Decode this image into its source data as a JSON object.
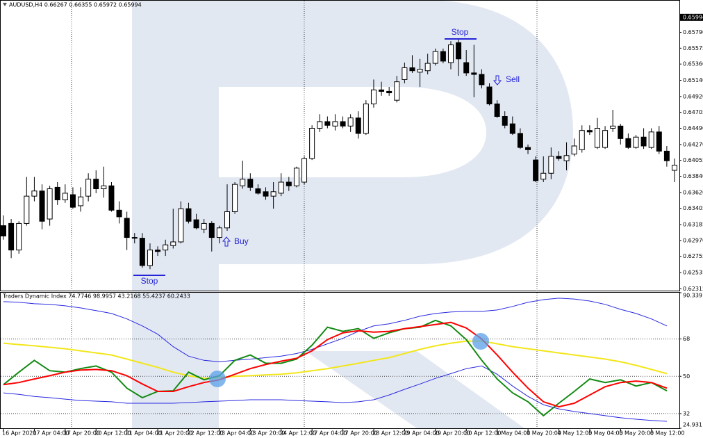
{
  "chart_data": [
    {
      "type": "candlestick",
      "title": "AUDUSD,H4  0.66267 0.66355 0.65972 0.65994",
      "open": [
        0.6317,
        0.632,
        0.6284,
        0.632,
        0.6357,
        0.6364,
        0.6326,
        0.6369,
        0.6352,
        0.6359,
        0.6344,
        0.6357,
        0.638,
        0.6367,
        0.6371,
        0.6338,
        0.6327,
        0.6301,
        0.63,
        0.6263,
        0.6284,
        0.6284,
        0.629,
        0.6295,
        0.634,
        0.6325,
        0.6312,
        0.632,
        0.6301,
        0.6314,
        0.6336,
        0.6371,
        0.638,
        0.6367,
        0.6363,
        0.6357,
        0.6361,
        0.6376,
        0.6371,
        0.6376,
        0.6408,
        0.6449,
        0.6458,
        0.6452,
        0.6458,
        0.6452,
        0.6463,
        0.6442,
        0.6482,
        0.6501,
        0.6499,
        0.6487,
        0.6515,
        0.6531,
        0.6525,
        0.6527,
        0.6537,
        0.6553,
        0.6538,
        0.6565,
        0.6538,
        0.6524,
        0.6522,
        0.6505,
        0.6482,
        0.6465,
        0.6455,
        0.6442,
        0.6423,
        0.6406,
        0.638,
        0.6388,
        0.6411,
        0.6405,
        0.6414,
        0.642,
        0.6446,
        0.6423,
        0.6423,
        0.6449,
        0.6452,
        0.6435,
        0.6423,
        0.6437,
        0.6423,
        0.6444,
        0.6418,
        0.6392
      ],
      "high": [
        0.6331,
        0.6326,
        0.6323,
        0.6383,
        0.6383,
        0.6373,
        0.6371,
        0.6376,
        0.6373,
        0.6369,
        0.6369,
        0.6388,
        0.6392,
        0.6397,
        0.6376,
        0.635,
        0.6336,
        0.6307,
        0.6307,
        0.6293,
        0.6289,
        0.6298,
        0.634,
        0.635,
        0.6348,
        0.6333,
        0.6326,
        0.6323,
        0.6317,
        0.6373,
        0.6376,
        0.6405,
        0.6388,
        0.6373,
        0.6369,
        0.6376,
        0.6388,
        0.6383,
        0.6397,
        0.6411,
        0.6453,
        0.6468,
        0.6465,
        0.6468,
        0.6465,
        0.6468,
        0.6472,
        0.6487,
        0.6515,
        0.6512,
        0.6505,
        0.652,
        0.6538,
        0.6548,
        0.6543,
        0.655,
        0.6557,
        0.6557,
        0.6567,
        0.6569,
        0.6555,
        0.6562,
        0.6529,
        0.651,
        0.6487,
        0.6472,
        0.6465,
        0.6449,
        0.6427,
        0.6411,
        0.6411,
        0.6423,
        0.6418,
        0.643,
        0.6435,
        0.6453,
        0.6453,
        0.6463,
        0.6452,
        0.6474,
        0.6455,
        0.6442,
        0.644,
        0.6449,
        0.6449,
        0.6452,
        0.6425,
        0.6408
      ],
      "low": [
        0.6298,
        0.6273,
        0.6279,
        0.6317,
        0.635,
        0.6312,
        0.6317,
        0.6345,
        0.6348,
        0.634,
        0.6336,
        0.635,
        0.6361,
        0.6355,
        0.6336,
        0.632,
        0.6284,
        0.6293,
        0.626,
        0.6258,
        0.6276,
        0.6276,
        0.6286,
        0.6293,
        0.632,
        0.6312,
        0.6307,
        0.6282,
        0.6293,
        0.631,
        0.6333,
        0.6367,
        0.6364,
        0.6359,
        0.6352,
        0.634,
        0.6357,
        0.6364,
        0.6369,
        0.6373,
        0.6406,
        0.6444,
        0.6449,
        0.6446,
        0.6449,
        0.6444,
        0.6435,
        0.644,
        0.6477,
        0.6493,
        0.6493,
        0.6484,
        0.651,
        0.6524,
        0.6505,
        0.6522,
        0.6534,
        0.6537,
        0.6529,
        0.652,
        0.652,
        0.6491,
        0.6503,
        0.648,
        0.6463,
        0.6449,
        0.644,
        0.6421,
        0.6414,
        0.6376,
        0.6376,
        0.638,
        0.6405,
        0.6392,
        0.6411,
        0.6416,
        0.644,
        0.6421,
        0.6421,
        0.6444,
        0.6427,
        0.6421,
        0.6421,
        0.6421,
        0.6421,
        0.6414,
        0.6397,
        0.6376
      ],
      "close": [
        0.6303,
        0.6284,
        0.632,
        0.6357,
        0.6364,
        0.6323,
        0.6367,
        0.6352,
        0.6361,
        0.6342,
        0.6356,
        0.638,
        0.6367,
        0.6371,
        0.6338,
        0.6329,
        0.6301,
        0.63,
        0.6263,
        0.6284,
        0.6282,
        0.6291,
        0.6295,
        0.634,
        0.6323,
        0.6314,
        0.632,
        0.6301,
        0.6314,
        0.6336,
        0.6373,
        0.638,
        0.6369,
        0.6361,
        0.6357,
        0.6363,
        0.6376,
        0.6371,
        0.6395,
        0.6408,
        0.6449,
        0.6458,
        0.6453,
        0.6458,
        0.6452,
        0.6463,
        0.6442,
        0.6482,
        0.6501,
        0.6499,
        0.6497,
        0.6512,
        0.6531,
        0.6527,
        0.6529,
        0.6537,
        0.6553,
        0.654,
        0.6562,
        0.6543,
        0.6524,
        0.6522,
        0.6508,
        0.6482,
        0.6465,
        0.6453,
        0.6442,
        0.6423,
        0.642,
        0.6378,
        0.6388,
        0.6411,
        0.6408,
        0.6412,
        0.6425,
        0.6446,
        0.6444,
        0.6449,
        0.6446,
        0.6452,
        0.6435,
        0.6423,
        0.6437,
        0.6425,
        0.6444,
        0.6418,
        0.6405,
        0.6399
      ],
      "ylim": [
        0.6229,
        0.662
      ],
      "yticks": [
        {
          "value": 0.6579,
          "label": "0.65790"
        },
        0.65575,
        {
          "value": 0.6536,
          "label": "0.65360"
        },
        {
          "value": 0.6514,
          "label": "0.65140"
        },
        {
          "value": 0.6492,
          "label": "0.64920"
        },
        0.64705,
        {
          "value": 0.6449,
          "label": "0.64490"
        },
        {
          "value": 0.6427,
          "label": "0.64270"
        },
        0.64055,
        {
          "value": 0.6384,
          "label": "0.63840"
        },
        {
          "value": 0.6362,
          "label": "0.63620"
        },
        0.63405,
        0.63185,
        {
          "value": 0.6297,
          "label": "0.62970"
        },
        0.62755,
        0.62535,
        0.62315
      ],
      "last_price": 0.65994,
      "up_color": "#ffffff",
      "down_color": "#000000",
      "annotations": [
        "Stop",
        "Stop",
        "Buy",
        "Sell"
      ]
    },
    {
      "type": "line",
      "title": "Traders Dynamic Index 74.7746 98.9957 43.2168 55.4237 60.2433",
      "categories": [
        "16 Apr 2020",
        null,
        "17 Apr 04:00",
        null,
        "17 Apr 20:00",
        null,
        "20 Apr 12:00",
        null,
        "21 Apr 04:00",
        null,
        "21 Apr 20:00",
        null,
        "22 Apr 12:00",
        null,
        "23 Apr 04:00",
        null,
        "23 Apr 20:00",
        null,
        "24 Apr 12:00",
        null,
        "27 Apr 04:00",
        null,
        "27 Apr 20:00",
        null,
        "28 Apr 12:00",
        null,
        "29 Apr 04:00",
        null,
        "29 Apr 20:00",
        null,
        "30 Apr 12:00",
        null,
        "1 May 04:00",
        null,
        "1 May 20:00",
        null,
        "4 May 12:00",
        null,
        "5 May 04:00",
        null,
        "5 May 20:00",
        null,
        "6 May 12:00",
        null
      ],
      "series": [
        {
          "color": "#2828e0",
          "values": [
            86.0,
            85.7,
            85.0,
            84.7,
            84.0,
            83.0,
            81.7,
            80.3,
            77.7,
            74.3,
            70.3,
            64.3,
            59.7,
            57.7,
            57.0,
            57.7,
            58.3,
            59.0,
            59.7,
            61.0,
            63.0,
            65.7,
            68.3,
            71.7,
            74.3,
            75.3,
            77.0,
            79.0,
            80.3,
            81.0,
            81.3,
            81.3,
            82.0,
            83.7,
            85.7,
            87.0,
            87.7,
            87.3,
            86.3,
            84.7,
            82.3,
            80.3,
            77.7,
            74.3
          ]
        },
        {
          "color": "#2828e0",
          "values": [
            42.0,
            41.3,
            40.3,
            39.7,
            39.0,
            38.3,
            38.0,
            37.7,
            37.0,
            37.0,
            37.0,
            37.0,
            37.3,
            37.7,
            38.0,
            38.3,
            38.7,
            38.7,
            38.7,
            38.3,
            38.0,
            37.7,
            37.3,
            37.7,
            38.7,
            41.0,
            43.7,
            46.3,
            49.0,
            51.3,
            53.7,
            55.0,
            51.0,
            45.3,
            40.3,
            36.3,
            34.3,
            33.0,
            32.0,
            31.0,
            30.0,
            29.3,
            28.7,
            28.3
          ]
        },
        {
          "color": "#f2e61a",
          "values": [
            66.0,
            65.3,
            64.7,
            64.0,
            63.3,
            62.3,
            61.3,
            60.3,
            58.3,
            56.3,
            54.3,
            52.0,
            50.3,
            49.0,
            49.3,
            50.0,
            50.3,
            50.7,
            51.0,
            51.7,
            52.7,
            53.7,
            55.0,
            56.3,
            57.7,
            59.0,
            61.0,
            63.0,
            64.7,
            66.0,
            67.0,
            67.0,
            65.7,
            64.3,
            63.3,
            62.3,
            61.3,
            60.3,
            59.3,
            58.3,
            57.0,
            55.3,
            53.3,
            51.3
          ]
        },
        {
          "color": "#138a13",
          "values": [
            46.0,
            52.0,
            57.7,
            52.7,
            52.0,
            53.7,
            55.0,
            52.0,
            44.3,
            39.7,
            42.7,
            43.0,
            52.0,
            48.3,
            50.3,
            57.7,
            60.3,
            56.3,
            56.3,
            58.3,
            65.0,
            73.7,
            71.7,
            73.0,
            68.3,
            71.0,
            73.0,
            73.7,
            77.0,
            74.3,
            67.7,
            57.7,
            48.7,
            42.0,
            37.7,
            31.0,
            37.0,
            42.7,
            48.7,
            47.0,
            48.3,
            45.3,
            47.0,
            43.0
          ]
        },
        {
          "color": "#ff0000",
          "values": [
            46.0,
            47.0,
            48.7,
            50.3,
            52.0,
            53.0,
            53.3,
            52.7,
            50.3,
            46.3,
            42.7,
            42.7,
            45.0,
            47.0,
            48.3,
            51.0,
            53.7,
            55.7,
            57.3,
            58.7,
            62.3,
            67.7,
            71.0,
            72.0,
            71.3,
            71.7,
            73.0,
            74.0,
            75.0,
            76.0,
            73.3,
            68.0,
            60.3,
            52.0,
            44.3,
            37.7,
            35.3,
            37.0,
            41.0,
            45.0,
            47.0,
            47.7,
            47.0,
            44.3
          ]
        }
      ],
      "ylim": [
        24.931,
        90.339
      ],
      "yticks": [
        90.339,
        68,
        50,
        32,
        24.931
      ],
      "grid": true
    }
  ]
}
